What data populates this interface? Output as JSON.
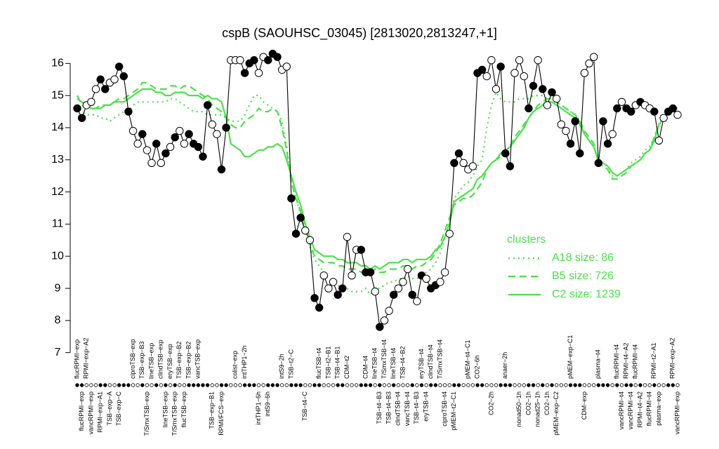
{
  "chart_data": {
    "type": "line",
    "title": "cspB (SAOUHSC_03045) [2813020,2813247,+1]",
    "categories": [
      "flucRPMI−exp",
      "flucRPMI−exp",
      "RPMI−exp−A2",
      "vancRPMI−exp",
      null,
      "RPMI−exp−A1",
      null,
      "TSB−exp−A",
      null,
      "TSB−exp−C",
      null,
      null,
      "ciproTSB−exp",
      null,
      "TSB−exp−B3",
      "T/SmxTSB−exp",
      "lineTSB−exp",
      null,
      "clindTSB−exp",
      "lineTSB−exp",
      "eryTSB−exp",
      "T/SmxTSB−exp",
      "TSB−exp−B2",
      "flucTSB−exp",
      "TSB−exp−B2",
      null,
      "vancTSB−exp",
      null,
      null,
      "TSB−exp−B1",
      null,
      "RPMI/FCS−exp",
      null,
      null,
      "colist−exp",
      null,
      "intTHP1−2h",
      null,
      null,
      "intTHP1−6h",
      null,
      "intS9−6h",
      null,
      null,
      "intS9−2h",
      null,
      "TSB−t2−C",
      null,
      null,
      "TSB−t4−C",
      null,
      null,
      "flucTSB−t4",
      null,
      "TSB−t2−B1",
      null,
      "TSB−t4−B1",
      null,
      "CDM−t2",
      null,
      null,
      null,
      "CDM−t4",
      null,
      "lineTSB−t4",
      "TSB−t4−B3",
      "T/SmxTSB−t4",
      "TSB−t4−B3",
      "lineTSB−t4",
      "clindTSB−t4",
      "TSB−t4−B2",
      "vancTSB−t4",
      null,
      "TSB−t4−B3",
      "eryTSB−t4",
      "eryTSB−t4",
      "clindTSB−t4",
      null,
      "T/SmxTSB−t4",
      "ciproTSB−t4",
      null,
      "pMEM−t2−C1",
      null,
      null,
      "pMEM−t4−C1",
      null,
      "CO2−6h",
      null,
      null,
      "CO2−2h",
      null,
      null,
      "anaer−2h",
      null,
      null,
      "nonad50−1h",
      null,
      "CO2−1h",
      null,
      "nonad25−1h",
      null,
      "CO2−1h",
      null,
      "pMEM−exp−C2",
      null,
      null,
      "pMEM−exp−C1",
      null,
      null,
      "CDM−exp",
      null,
      null,
      "plasma−t4",
      null,
      null,
      null,
      "flucRPMI−t4",
      "vancRPMI−t4",
      "RPMI−t4−A2",
      "vancRPMI−t4",
      "flucRPMI−t4",
      "RPMI−t4−A2",
      null,
      "flucRPMI−t4",
      "RPMI−t2−A1",
      "plasma−exp",
      null,
      null,
      "RPMI−exp−A2",
      "vancRPMI−exp"
    ],
    "ylim": [
      6.6,
      16.4
    ],
    "yticks": [
      7,
      8,
      9,
      10,
      11,
      12,
      13,
      14,
      15,
      16
    ],
    "legend_title": "clusters",
    "series": [
      {
        "color": "#000000",
        "values": [
          14.6,
          14.3,
          14.7,
          14.8,
          15.2,
          15.5,
          15.2,
          15.4,
          15.5,
          15.9,
          15.6,
          14.5,
          13.9,
          13.5,
          13.8,
          13.3,
          12.9,
          13.5,
          12.9,
          13.2,
          13.4,
          13.7,
          13.9,
          13.5,
          13.8,
          13.5,
          13.4,
          13.1,
          14.7,
          14.1,
          13.8,
          12.7,
          14.0,
          16.1,
          16.1,
          16.1,
          15.7,
          16.0,
          16.1,
          15.7,
          16.2,
          16.1,
          16.3,
          16.2,
          15.8,
          15.9,
          11.8,
          10.7,
          11.2,
          10.8,
          10.5,
          8.7,
          8.4,
          9.4,
          9.0,
          9.2,
          8.8,
          9.0,
          10.6,
          9.4,
          10.2,
          10.2,
          9.5,
          9.5,
          8.9,
          7.8,
          8.0,
          8.3,
          8.8,
          9.0,
          9.2,
          9.6,
          8.8,
          8.6,
          9.4,
          9.3,
          9.0,
          9.1,
          9.2,
          9.5,
          10.7,
          12.9,
          13.2,
          12.9,
          12.7,
          12.8,
          15.7,
          15.8,
          15.6,
          16.1,
          15.2,
          15.9,
          13.2,
          12.8,
          15.7,
          16.1,
          15.6,
          14.6,
          15.3,
          16.1,
          15.2,
          14.7,
          15.1,
          14.9,
          14.1,
          13.9,
          13.5,
          14.2,
          13.2,
          15.7,
          16.0,
          16.2,
          12.9,
          14.2,
          13.5,
          13.8,
          14.6,
          14.8,
          14.6,
          14.5,
          14.7,
          14.8,
          14.7,
          14.6,
          14.5,
          13.6,
          14.3,
          14.5,
          14.6,
          14.4
        ],
        "marker_filled": [
          true,
          true,
          false,
          false,
          false,
          true,
          true,
          false,
          false,
          true,
          true,
          true,
          false,
          false,
          true,
          false,
          false,
          true,
          false,
          true,
          false,
          true,
          false,
          false,
          true,
          true,
          true,
          true,
          true,
          false,
          false,
          true,
          true,
          false,
          false,
          false,
          true,
          true,
          true,
          false,
          false,
          true,
          true,
          true,
          false,
          false,
          true,
          true,
          true,
          false,
          false,
          true,
          true,
          false,
          false,
          false,
          true,
          true,
          false,
          false,
          false,
          true,
          true,
          true,
          false,
          true,
          false,
          false,
          true,
          false,
          false,
          false,
          true,
          false,
          true,
          false,
          true,
          true,
          false,
          false,
          false,
          true,
          true,
          false,
          false,
          false,
          true,
          true,
          false,
          false,
          false,
          true,
          true,
          true,
          false,
          false,
          false,
          true,
          true,
          false,
          true,
          false,
          true,
          false,
          false,
          false,
          true,
          true,
          true,
          false,
          false,
          false,
          true,
          true,
          true,
          false,
          true,
          false,
          true,
          true,
          false,
          true,
          false,
          false,
          true,
          false,
          false,
          true,
          true,
          false
        ]
      },
      {
        "name": "A18 size: 86",
        "color": "#4be04b",
        "dash": "dotted",
        "values": [
          14.7,
          14.5,
          14.4,
          14.4,
          14.4,
          14.3,
          14.3,
          14.2,
          14.3,
          14.4,
          14.5,
          14.5,
          14.7,
          14.8,
          14.8,
          14.8,
          14.8,
          14.8,
          14.8,
          14.8,
          14.9,
          14.9,
          14.8,
          14.7,
          14.6,
          14.5,
          14.5,
          14.5,
          14.4,
          14.4,
          14.4,
          14.4,
          14.3,
          14.2,
          14.2,
          14.2,
          14.4,
          14.7,
          15.0,
          15.0,
          14.8,
          14.7,
          14.6,
          14.5,
          14.2,
          13.4,
          12.3,
          11.8,
          11.3,
          10.7,
          10.3,
          9.9,
          9.7,
          9.5,
          9.3,
          9.2,
          9.1,
          9.0,
          9.0,
          8.9,
          8.9,
          8.9,
          9.0,
          8.8,
          9.0,
          9.0,
          9.1,
          9.2,
          9.2,
          9.3,
          9.3,
          9.4,
          9.3,
          9.3,
          9.4,
          9.5,
          9.6,
          9.8,
          10.1,
          10.6,
          11.1,
          11.8,
          12.0,
          12.2,
          12.3,
          12.5,
          12.8,
          13.0,
          14.0,
          14.7,
          15.1,
          14.9,
          14.8,
          14.8,
          14.8,
          14.9,
          14.9,
          14.9,
          15.0,
          15.0,
          15.0,
          14.9,
          14.9,
          14.8,
          14.7,
          14.6,
          14.5,
          14.4,
          14.2,
          13.8,
          13.6,
          13.4,
          12.9,
          12.8,
          12.7,
          12.5,
          12.5,
          12.6,
          12.7,
          12.9,
          13.0,
          13.1,
          13.3,
          13.4,
          13.7,
          14.1,
          14.3,
          14.5,
          14.6,
          14.6
        ]
      },
      {
        "name": "B5 size: 726",
        "color": "#4be04b",
        "dash": "dashed",
        "values": [
          15.0,
          14.7,
          14.6,
          14.6,
          14.6,
          14.7,
          14.7,
          14.7,
          14.8,
          14.9,
          14.9,
          15.0,
          15.1,
          15.2,
          15.4,
          15.4,
          15.3,
          15.2,
          15.2,
          15.2,
          15.3,
          15.3,
          15.2,
          15.3,
          15.3,
          15.2,
          15.1,
          15.0,
          14.9,
          14.7,
          14.6,
          14.5,
          14.3,
          14.1,
          14.0,
          14.0,
          14.2,
          14.3,
          14.4,
          14.6,
          14.5,
          14.5,
          14.6,
          14.5,
          14.0,
          13.3,
          12.3,
          11.8,
          11.4,
          10.8,
          10.4,
          10.0,
          9.9,
          9.8,
          9.8,
          9.8,
          9.7,
          9.7,
          9.6,
          9.6,
          9.6,
          9.5,
          9.5,
          9.5,
          9.6,
          9.5,
          9.5,
          9.6,
          9.6,
          9.6,
          9.7,
          9.7,
          9.6,
          9.7,
          9.7,
          9.8,
          9.9,
          10.1,
          10.4,
          10.8,
          11.2,
          11.6,
          11.7,
          11.8,
          11.8,
          11.9,
          12.1,
          12.3,
          12.7,
          12.9,
          13.0,
          13.1,
          13.3,
          13.4,
          13.7,
          13.9,
          14.1,
          14.3,
          14.5,
          14.7,
          14.8,
          14.9,
          14.9,
          14.8,
          14.7,
          14.6,
          14.5,
          14.4,
          14.2,
          13.9,
          13.7,
          13.5,
          12.9,
          12.8,
          12.7,
          12.4,
          12.4,
          12.5,
          12.6,
          12.8,
          12.9,
          13.0,
          13.2,
          13.3,
          13.7,
          14.1,
          14.3,
          14.5,
          14.6,
          14.6
        ]
      },
      {
        "name": "C2 size: 1239",
        "color": "#4be04b",
        "dash": "solid",
        "values": [
          14.9,
          14.8,
          14.7,
          14.6,
          14.6,
          14.6,
          14.7,
          14.7,
          14.8,
          14.8,
          14.8,
          14.9,
          15.0,
          15.1,
          15.2,
          15.2,
          15.2,
          15.1,
          15.1,
          15.0,
          15.0,
          15.1,
          15.1,
          15.1,
          15.0,
          15.0,
          15.0,
          14.9,
          15.0,
          14.9,
          14.9,
          14.8,
          14.3,
          13.5,
          13.4,
          13.3,
          13.1,
          13.1,
          13.2,
          13.3,
          13.3,
          13.4,
          13.4,
          13.5,
          13.4,
          13.0,
          12.5,
          12.0,
          11.6,
          11.0,
          10.6,
          10.2,
          10.1,
          10.0,
          10.0,
          10.0,
          9.9,
          9.9,
          9.8,
          9.8,
          9.8,
          9.7,
          9.7,
          9.6,
          9.7,
          9.6,
          9.7,
          9.8,
          9.8,
          9.8,
          9.9,
          9.9,
          9.8,
          9.9,
          9.9,
          9.9,
          10.0,
          10.2,
          10.3,
          10.6,
          11.0,
          11.7,
          11.8,
          11.9,
          12.0,
          12.1,
          12.4,
          12.5,
          12.7,
          12.9,
          13.0,
          13.2,
          13.3,
          13.4,
          13.6,
          13.8,
          14.0,
          14.3,
          14.5,
          14.6,
          14.7,
          14.8,
          14.8,
          14.7,
          14.6,
          14.5,
          14.4,
          14.3,
          14.1,
          13.8,
          13.6,
          13.4,
          13.0,
          12.9,
          12.8,
          12.6,
          12.5,
          12.6,
          12.7,
          12.8,
          12.9,
          13.0,
          13.2,
          13.3,
          13.6,
          14.1,
          14.3,
          14.5,
          14.6,
          14.6
        ]
      }
    ]
  }
}
